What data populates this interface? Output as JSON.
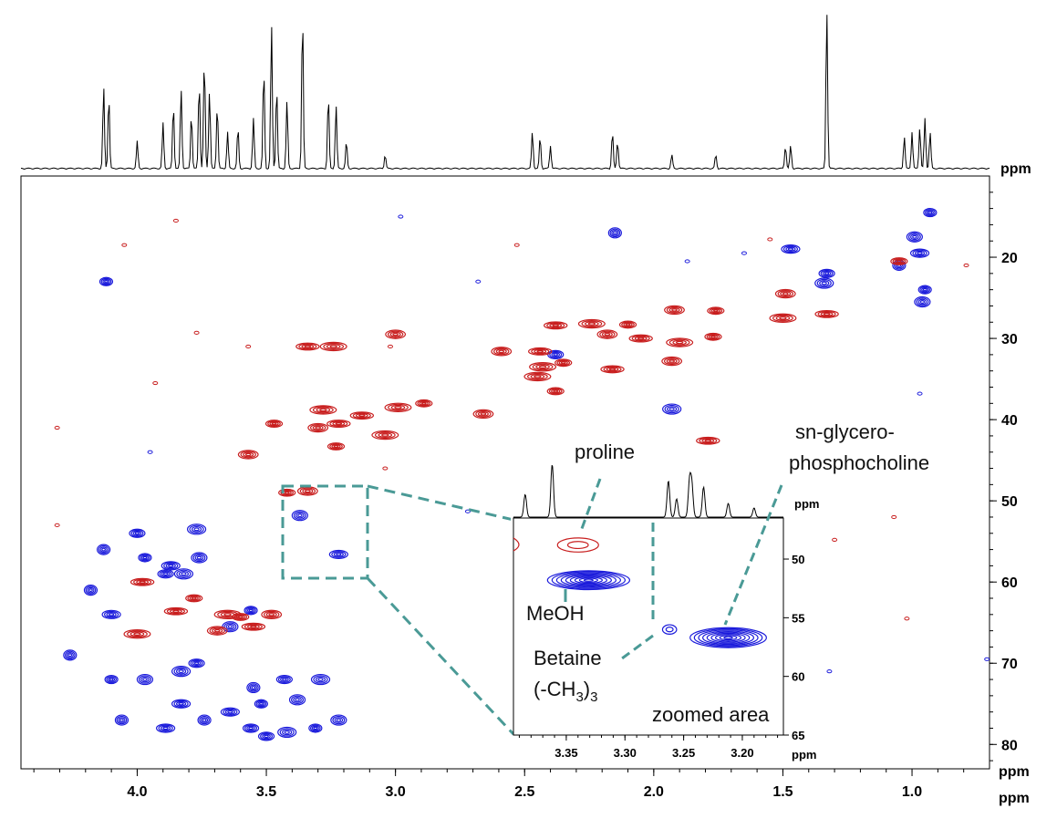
{
  "chart_data": {
    "type": "contour",
    "title": "",
    "colors": {
      "positive": "#1a1adb",
      "negative": "#c81e1e",
      "spectrum": "#000000",
      "guide": "#4a9a96"
    },
    "axes": {
      "x": {
        "label": "ppm",
        "range": [
          4.45,
          0.7
        ],
        "ticks": [
          "4.0",
          "3.5",
          "3.0",
          "2.5",
          "2.0",
          "1.5",
          "1.0"
        ],
        "tick_values": [
          4.0,
          3.5,
          3.0,
          2.5,
          2.0,
          1.5,
          1.0
        ]
      },
      "y": {
        "label": "ppm",
        "range": [
          10,
          83
        ],
        "ticks": [
          "20",
          "30",
          "40",
          "50",
          "60",
          "70",
          "80"
        ],
        "tick_values": [
          20,
          30,
          40,
          50,
          60,
          70,
          80
        ]
      },
      "top_spectrum_label": "ppm"
    },
    "peaks_1d": [
      [
        4.13,
        90
      ],
      [
        4.11,
        80
      ],
      [
        4.0,
        30
      ],
      [
        3.9,
        50
      ],
      [
        3.86,
        70
      ],
      [
        3.83,
        88
      ],
      [
        3.79,
        60
      ],
      [
        3.76,
        95
      ],
      [
        3.74,
        120
      ],
      [
        3.72,
        85
      ],
      [
        3.69,
        70
      ],
      [
        3.65,
        40
      ],
      [
        3.61,
        45
      ],
      [
        3.55,
        55
      ],
      [
        3.51,
        110
      ],
      [
        3.48,
        160
      ],
      [
        3.46,
        90
      ],
      [
        3.42,
        75
      ],
      [
        3.36,
        170
      ],
      [
        3.26,
        80
      ],
      [
        3.23,
        70
      ],
      [
        3.19,
        30
      ],
      [
        3.04,
        15
      ],
      [
        2.47,
        40
      ],
      [
        2.44,
        35
      ],
      [
        2.4,
        25
      ],
      [
        2.16,
        40
      ],
      [
        2.14,
        30
      ],
      [
        1.93,
        15
      ],
      [
        1.76,
        15
      ],
      [
        1.49,
        25
      ],
      [
        1.47,
        25
      ],
      [
        1.33,
        175
      ],
      [
        1.03,
        35
      ],
      [
        1.0,
        40
      ],
      [
        0.97,
        45
      ],
      [
        0.95,
        55
      ],
      [
        0.93,
        40
      ]
    ],
    "contours": {
      "positive": [
        [
          0.93,
          14.5
        ],
        [
          0.99,
          17.5
        ],
        [
          0.97,
          19.5
        ],
        [
          1.05,
          21
        ],
        [
          1.33,
          22
        ],
        [
          1.34,
          23.2
        ],
        [
          0.95,
          24
        ],
        [
          0.96,
          25.5
        ],
        [
          1.47,
          19
        ],
        [
          2.15,
          17
        ],
        [
          2.38,
          32
        ],
        [
          1.93,
          38.7
        ],
        [
          4.12,
          23
        ],
        [
          3.37,
          51.8
        ],
        [
          3.22,
          56.6
        ],
        [
          4.13,
          56
        ],
        [
          4.0,
          54
        ],
        [
          3.77,
          53.5
        ],
        [
          3.97,
          57
        ],
        [
          3.76,
          57
        ],
        [
          3.87,
          58
        ],
        [
          4.18,
          61
        ],
        [
          3.89,
          59
        ],
        [
          3.82,
          59
        ],
        [
          3.56,
          63.5
        ],
        [
          3.64,
          65.5
        ],
        [
          4.1,
          64
        ],
        [
          4.26,
          69
        ],
        [
          3.77,
          70
        ],
        [
          3.83,
          71
        ],
        [
          4.1,
          72
        ],
        [
          3.97,
          72
        ],
        [
          3.83,
          75
        ],
        [
          3.55,
          73
        ],
        [
          3.43,
          72
        ],
        [
          3.29,
          72
        ],
        [
          3.52,
          75
        ],
        [
          3.38,
          74.5
        ],
        [
          3.64,
          76
        ],
        [
          3.74,
          77
        ],
        [
          3.56,
          78
        ],
        [
          3.42,
          78.5
        ],
        [
          3.31,
          78
        ],
        [
          3.22,
          77
        ],
        [
          3.89,
          78
        ],
        [
          4.06,
          77
        ],
        [
          3.5,
          79
        ]
      ],
      "negative": [
        [
          1.05,
          20.5
        ],
        [
          1.49,
          24.5
        ],
        [
          1.33,
          27
        ],
        [
          1.5,
          27.5
        ],
        [
          1.76,
          26.6
        ],
        [
          1.92,
          26.5
        ],
        [
          2.38,
          28.4
        ],
        [
          2.24,
          28.2
        ],
        [
          2.1,
          28.3
        ],
        [
          2.18,
          29.5
        ],
        [
          2.05,
          30.0
        ],
        [
          1.9,
          30.5
        ],
        [
          1.77,
          29.8
        ],
        [
          1.93,
          32.8
        ],
        [
          2.44,
          31.6
        ],
        [
          2.43,
          33.5
        ],
        [
          2.35,
          33.0
        ],
        [
          2.59,
          31.6
        ],
        [
          2.16,
          33.8
        ],
        [
          2.45,
          34.7
        ],
        [
          2.38,
          36.5
        ],
        [
          3.0,
          29.5
        ],
        [
          3.34,
          31.0
        ],
        [
          3.24,
          31.0
        ],
        [
          2.89,
          38.0
        ],
        [
          2.66,
          39.3
        ],
        [
          3.13,
          39.5
        ],
        [
          2.99,
          38.5
        ],
        [
          3.47,
          40.5
        ],
        [
          3.3,
          41.0
        ],
        [
          3.22,
          40.5
        ],
        [
          3.04,
          41.9
        ],
        [
          3.23,
          43.3
        ],
        [
          3.57,
          44.3
        ],
        [
          1.79,
          42.6
        ],
        [
          3.28,
          38.8
        ],
        [
          3.42,
          49.0
        ],
        [
          3.34,
          48.8
        ],
        [
          3.85,
          63.6
        ],
        [
          3.65,
          64.0
        ],
        [
          3.6,
          64.3
        ],
        [
          3.69,
          66.0
        ],
        [
          3.55,
          65.5
        ],
        [
          4.0,
          66.4
        ],
        [
          3.78,
          62.0
        ],
        [
          3.48,
          64.0
        ],
        [
          3.98,
          60.0
        ]
      ]
    },
    "inset": {
      "caption": "zoomed area",
      "x_label": "ppm",
      "y_label": "ppm",
      "x_ticks": [
        "3.35",
        "3.30",
        "3.25",
        "3.20"
      ],
      "x_tick_values": [
        3.35,
        3.3,
        3.25,
        3.2
      ],
      "y_ticks": [
        "50",
        "55",
        "60",
        "65"
      ],
      "y_tick_values": [
        50,
        55,
        60,
        65
      ],
      "x_range": [
        3.395,
        3.165
      ],
      "y_range": [
        46.5,
        65
      ],
      "annotations": [
        {
          "text": "proline"
        },
        {
          "text": "sn-glycero-"
        },
        {
          "text": "phosphocholine"
        },
        {
          "text": "MeOH"
        },
        {
          "text": "Betaine"
        },
        {
          "text": "(-CH"
        },
        {
          "text": "3"
        },
        {
          "text": ")"
        },
        {
          "text": "3"
        }
      ],
      "peaks": [
        {
          "x": 3.34,
          "y": 48.8,
          "sign": "negative",
          "w": 0.035,
          "h": 1.2
        },
        {
          "x": 3.331,
          "y": 51.8,
          "sign": "positive",
          "w": 0.07,
          "h": 1.6
        },
        {
          "x": 3.262,
          "y": 56.0,
          "sign": "positive",
          "w": 0.012,
          "h": 0.8
        },
        {
          "x": 3.212,
          "y": 56.7,
          "sign": "positive",
          "w": 0.065,
          "h": 1.7
        }
      ]
    }
  }
}
